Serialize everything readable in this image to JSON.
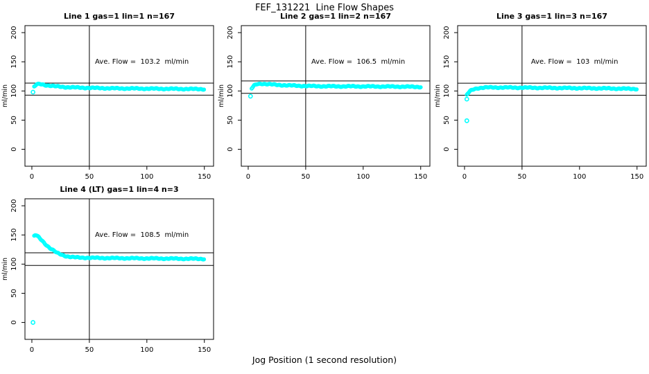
{
  "main_title": "FEF_131221  Line Flow Shapes",
  "x_axis_title": "Jog Position (1 second resolution)",
  "point_color": "#00ffff",
  "axis_color": "#000000",
  "chart_data": [
    {
      "type": "scatter",
      "title": "Line 1 gas=1 lin=1 n=167",
      "annotation": "Ave. Flow =  103.2  ml/min",
      "ave_flow": 103.2,
      "n": 167,
      "ylabel": "ml/min",
      "xlim": [
        -6,
        158
      ],
      "ylim": [
        -29,
        212
      ],
      "xticks": [
        0,
        50,
        100,
        150
      ],
      "yticks": [
        0,
        50,
        100,
        150,
        200
      ],
      "vline_x": 50,
      "hlines": [
        113.5,
        92.9
      ],
      "outliers": [
        [
          1,
          98
        ]
      ],
      "curve_keypoints": [
        [
          2,
          107
        ],
        [
          4,
          111
        ],
        [
          7,
          112
        ],
        [
          12,
          110
        ],
        [
          20,
          108
        ],
        [
          30,
          106.5
        ],
        [
          45,
          105.5
        ],
        [
          70,
          104.5
        ],
        [
          100,
          104
        ],
        [
          130,
          103.5
        ],
        [
          150,
          103.2
        ]
      ]
    },
    {
      "type": "scatter",
      "title": "Line 2 gas=1 lin=2 n=167",
      "annotation": "Ave. Flow =  106.5  ml/min",
      "ave_flow": 106.5,
      "n": 167,
      "ylabel": "ml/min",
      "xlim": [
        -6,
        158
      ],
      "ylim": [
        -29,
        212
      ],
      "xticks": [
        0,
        50,
        100,
        150
      ],
      "yticks": [
        0,
        50,
        100,
        150,
        200
      ],
      "vline_x": 50,
      "hlines": [
        117.2,
        95.9
      ],
      "outliers": [
        [
          2,
          91
        ]
      ],
      "curve_keypoints": [
        [
          3,
          104
        ],
        [
          5,
          109
        ],
        [
          8,
          112
        ],
        [
          12,
          112.5
        ],
        [
          18,
          111.5
        ],
        [
          25,
          110.5
        ],
        [
          35,
          109.5
        ],
        [
          50,
          108.5
        ],
        [
          70,
          108
        ],
        [
          100,
          107.8
        ],
        [
          130,
          107.5
        ],
        [
          150,
          107
        ]
      ]
    },
    {
      "type": "scatter",
      "title": "Line 3 gas=1 lin=3 n=167",
      "annotation": "Ave. Flow =  103  ml/min",
      "ave_flow": 103,
      "n": 167,
      "ylabel": "ml/min",
      "xlim": [
        -6,
        158
      ],
      "ylim": [
        -29,
        212
      ],
      "xticks": [
        0,
        50,
        100,
        150
      ],
      "yticks": [
        0,
        50,
        100,
        150,
        200
      ],
      "vline_x": 50,
      "hlines": [
        113.3,
        92.7
      ],
      "outliers": [
        [
          2,
          86
        ],
        [
          2,
          49
        ]
      ],
      "curve_keypoints": [
        [
          2,
          93
        ],
        [
          3,
          96
        ],
        [
          5,
          100
        ],
        [
          8,
          103
        ],
        [
          12,
          105
        ],
        [
          18,
          106
        ],
        [
          30,
          106
        ],
        [
          60,
          105.5
        ],
        [
          90,
          105
        ],
        [
          120,
          104.5
        ],
        [
          150,
          103.5
        ]
      ]
    },
    {
      "type": "scatter",
      "title": "Line 4 (LT) gas=1 lin=4 n=3",
      "annotation": "Ave. Flow =  108.5  ml/min",
      "ave_flow": 108.5,
      "n": 3,
      "ylabel": "ml/min",
      "xlim": [
        -6,
        158
      ],
      "ylim": [
        -29,
        212
      ],
      "xticks": [
        0,
        50,
        100,
        150
      ],
      "yticks": [
        0,
        50,
        100,
        150,
        200
      ],
      "vline_x": 50,
      "hlines": [
        119.4,
        97.7
      ],
      "outliers": [
        [
          1,
          0
        ]
      ],
      "curve_keypoints": [
        [
          2,
          148
        ],
        [
          3,
          150
        ],
        [
          4,
          149
        ],
        [
          6,
          146
        ],
        [
          8,
          142
        ],
        [
          10,
          138
        ],
        [
          13,
          132
        ],
        [
          16,
          127
        ],
        [
          19,
          123
        ],
        [
          22,
          119
        ],
        [
          26,
          116
        ],
        [
          30,
          113.5
        ],
        [
          35,
          112
        ],
        [
          40,
          111.3
        ],
        [
          50,
          110.8
        ],
        [
          70,
          110.3
        ],
        [
          100,
          109.8
        ],
        [
          130,
          109.3
        ],
        [
          150,
          109
        ]
      ]
    }
  ]
}
